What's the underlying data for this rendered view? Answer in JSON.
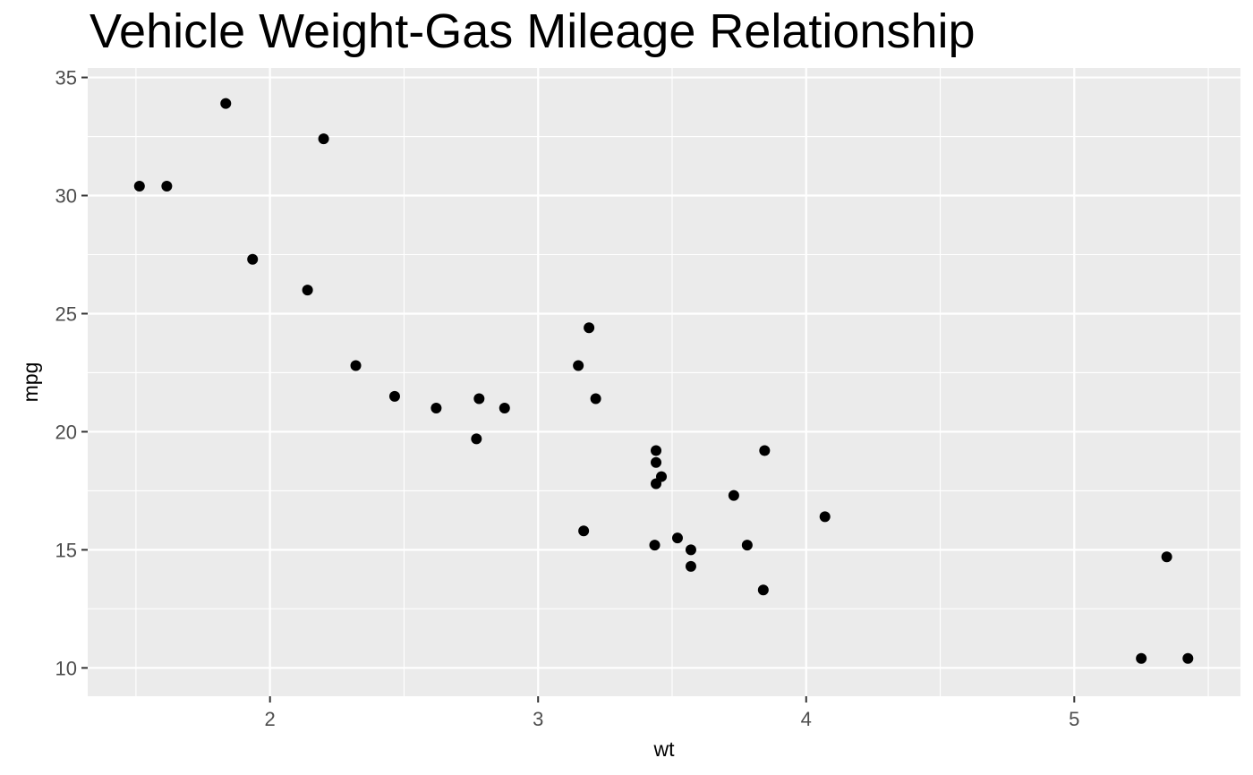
{
  "chart_data": {
    "type": "scatter",
    "title": "Vehicle Weight-Gas Mileage Relationship",
    "xlabel": "wt",
    "ylabel": "mpg",
    "xlim": [
      1.32,
      5.62
    ],
    "ylim": [
      8.8,
      35.4
    ],
    "x_ticks": [
      2,
      3,
      4,
      5
    ],
    "y_ticks": [
      10,
      15,
      20,
      25,
      30,
      35
    ],
    "x_minor": [
      1.5,
      2.5,
      3.5,
      4.5,
      5.5
    ],
    "y_minor": [
      12.5,
      17.5,
      22.5,
      27.5,
      32.5
    ],
    "grid": true,
    "legend": "none",
    "colors": {
      "panel": "#ebebeb",
      "grid": "#ffffff",
      "point": "#000000",
      "tick": "#333333"
    },
    "points": [
      {
        "x": 2.62,
        "y": 21.0
      },
      {
        "x": 2.875,
        "y": 21.0
      },
      {
        "x": 2.32,
        "y": 22.8
      },
      {
        "x": 3.215,
        "y": 21.4
      },
      {
        "x": 3.44,
        "y": 18.7
      },
      {
        "x": 3.46,
        "y": 18.1
      },
      {
        "x": 3.57,
        "y": 14.3
      },
      {
        "x": 3.19,
        "y": 24.4
      },
      {
        "x": 3.15,
        "y": 22.8
      },
      {
        "x": 3.44,
        "y": 19.2
      },
      {
        "x": 3.44,
        "y": 17.8
      },
      {
        "x": 4.07,
        "y": 16.4
      },
      {
        "x": 3.73,
        "y": 17.3
      },
      {
        "x": 3.78,
        "y": 15.2
      },
      {
        "x": 5.25,
        "y": 10.4
      },
      {
        "x": 5.424,
        "y": 10.4
      },
      {
        "x": 5.345,
        "y": 14.7
      },
      {
        "x": 2.2,
        "y": 32.4
      },
      {
        "x": 1.615,
        "y": 30.4
      },
      {
        "x": 1.835,
        "y": 33.9
      },
      {
        "x": 2.465,
        "y": 21.5
      },
      {
        "x": 3.52,
        "y": 15.5
      },
      {
        "x": 3.435,
        "y": 15.2
      },
      {
        "x": 3.84,
        "y": 13.3
      },
      {
        "x": 3.845,
        "y": 19.2
      },
      {
        "x": 1.935,
        "y": 27.3
      },
      {
        "x": 2.14,
        "y": 26.0
      },
      {
        "x": 1.513,
        "y": 30.4
      },
      {
        "x": 3.17,
        "y": 15.8
      },
      {
        "x": 2.77,
        "y": 19.7
      },
      {
        "x": 3.57,
        "y": 15.0
      },
      {
        "x": 2.78,
        "y": 21.4
      }
    ]
  }
}
